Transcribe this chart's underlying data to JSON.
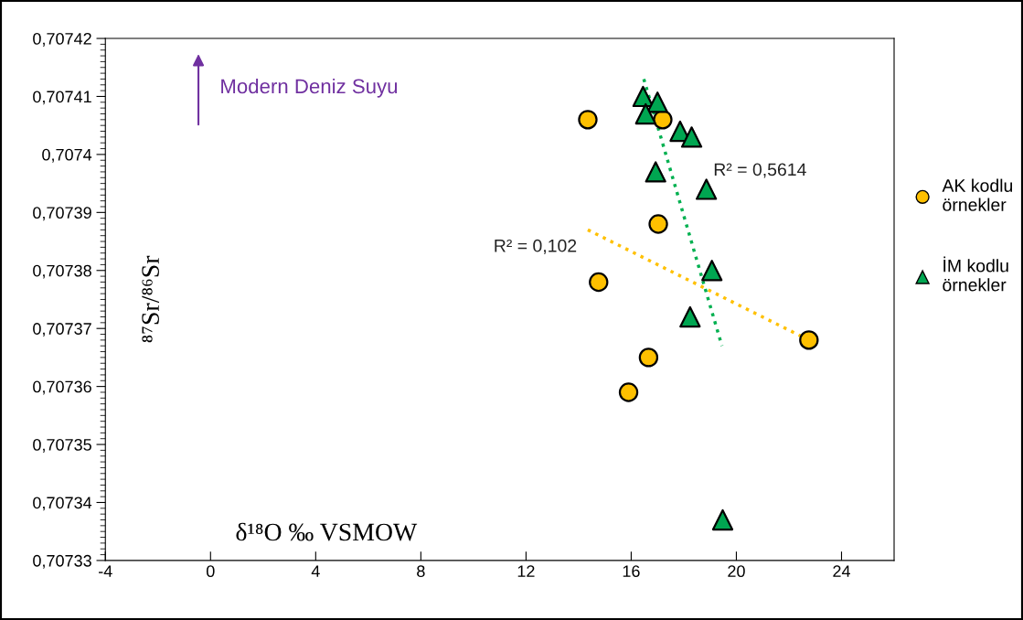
{
  "chart_data": {
    "type": "scatter",
    "xlabel": "δ¹⁸O ‰ VSMOW",
    "ylabel": "⁸⁷Sr/⁸⁶Sr",
    "xlim": [
      -4,
      26
    ],
    "xticks": [
      -4,
      0,
      4,
      8,
      12,
      16,
      20,
      24
    ],
    "ylim": [
      0.70733,
      0.70742
    ],
    "yticks": [
      {
        "value": 0.70733,
        "label": "0,70733"
      },
      {
        "value": 0.70734,
        "label": "0,70734"
      },
      {
        "value": 0.70735,
        "label": "0,70735"
      },
      {
        "value": 0.70736,
        "label": "0,70736"
      },
      {
        "value": 0.70737,
        "label": "0,70737"
      },
      {
        "value": 0.70738,
        "label": "0,70738"
      },
      {
        "value": 0.70739,
        "label": "0,70739"
      },
      {
        "value": 0.7074,
        "label": "0,7074"
      },
      {
        "value": 0.70741,
        "label": "0,70741"
      },
      {
        "value": 0.70742,
        "label": "0,70742"
      }
    ],
    "grid": false,
    "legend": "right",
    "series": [
      {
        "name": "AK kodlu örnekler",
        "marker": "circle",
        "color": "#ffc000",
        "x": [
          14.35,
          17.2,
          17.03,
          14.76,
          22.76,
          16.66,
          15.9
        ],
        "values": [
          0.707406,
          0.707406,
          0.707388,
          0.707378,
          0.707368,
          0.707365,
          0.707359
        ]
      },
      {
        "name": "İM kodlu örnekler",
        "marker": "triangle",
        "color": "#00a651",
        "x": [
          16.45,
          17.0,
          16.55,
          17.86,
          18.3,
          16.93,
          18.86,
          19.07,
          18.24,
          19.48
        ],
        "values": [
          0.70741,
          0.707409,
          0.707407,
          0.707404,
          0.707403,
          0.707397,
          0.707394,
          0.70738,
          0.707372,
          0.707337
        ]
      },
      {
        "type": "line",
        "line_style": "dotted",
        "color": "#ffc000",
        "x": [
          14.35,
          22.76
        ],
        "values": [
          0.707387,
          0.707368
        ]
      },
      {
        "type": "line",
        "line_style": "dotted",
        "color": "#00b050",
        "x": [
          16.48,
          19.45
        ],
        "values": [
          0.707413,
          0.707367
        ]
      }
    ],
    "annotations": [
      "R² = 0,5614",
      "R² = 0,102",
      "Modern Deniz Suyu"
    ]
  }
}
